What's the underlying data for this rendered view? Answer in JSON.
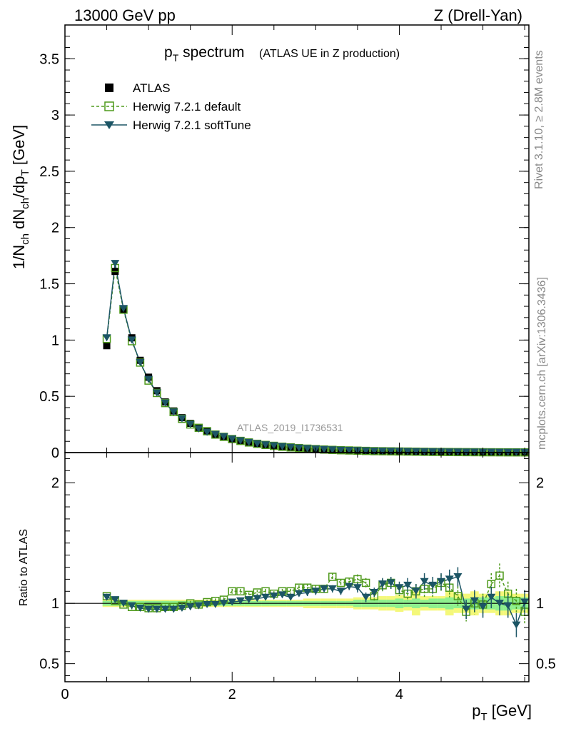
{
  "header": {
    "left": "13000 GeV pp",
    "right": "Z (Drell-Yan)"
  },
  "side_labels": {
    "rivet": "Rivet 3.1.10, ≥ 2.8M events",
    "mcplots": "mcplots.cern.ch [arXiv:1306.3436]"
  },
  "colors": {
    "data": "#000000",
    "default": "#4f9a1c",
    "softtune": "#1c5565",
    "band_inner": "#8ef08e",
    "band_outer": "#f4f87a"
  },
  "chart_data": [
    {
      "type": "line",
      "panel": "main",
      "title_main": "p",
      "title_sub": "T",
      "title_rest": " spectrum",
      "title_note": "(ATLAS UE in Z production)",
      "watermark": "ATLAS_2019_I1736531",
      "ylabel": "1/N_ch dN_ch/dp_T [GeV]",
      "ylim": [
        0,
        3.8
      ],
      "xlim": [
        0,
        5.55
      ],
      "yticks": [
        "0",
        "0.5",
        "1",
        "1.5",
        "2",
        "2.5",
        "3",
        "3.5"
      ],
      "legend_position": "top-left",
      "legend": [
        "ATLAS",
        "Herwig 7.2.1 default",
        "Herwig 7.2.1 softTune"
      ],
      "x": [
        0.5,
        0.6,
        0.7,
        0.8,
        0.9,
        1.0,
        1.1,
        1.2,
        1.3,
        1.4,
        1.5,
        1.6,
        1.7,
        1.8,
        1.9,
        2.0,
        2.1,
        2.2,
        2.3,
        2.4,
        2.5,
        2.6,
        2.7,
        2.8,
        2.9,
        3.0,
        3.1,
        3.2,
        3.3,
        3.4,
        3.5,
        3.6,
        3.7,
        3.8,
        3.9,
        4.0,
        4.1,
        4.2,
        4.3,
        4.4,
        4.5,
        4.6,
        4.7,
        4.8,
        4.9,
        5.0,
        5.1,
        5.2,
        5.3,
        5.4,
        5.5
      ],
      "series": [
        {
          "name": "ATLAS",
          "values": [
            0.95,
            1.61,
            1.27,
            1.02,
            0.82,
            0.67,
            0.55,
            0.45,
            0.37,
            0.31,
            0.26,
            0.22,
            0.19,
            0.16,
            0.14,
            0.12,
            0.104,
            0.09,
            0.078,
            0.068,
            0.06,
            0.052,
            0.046,
            0.04,
            0.035,
            0.031,
            0.027,
            0.024,
            0.021,
            0.019,
            0.017,
            0.015,
            0.013,
            0.012,
            0.011,
            0.01,
            0.009,
            0.008,
            0.007,
            0.006,
            0.0055,
            0.005,
            0.0045,
            0.004,
            0.0036,
            0.0032,
            0.0029,
            0.0026,
            0.0023,
            0.0021,
            0.0019
          ]
        },
        {
          "name": "Herwig 7.2.1 default",
          "values": [
            1.01,
            1.64,
            1.27,
            0.99,
            0.8,
            0.64,
            0.53,
            0.44,
            0.36,
            0.3,
            0.25,
            0.22,
            0.19,
            0.16,
            0.14,
            0.12,
            0.104,
            0.09,
            0.078,
            0.068,
            0.06,
            0.052,
            0.046,
            0.04,
            0.035,
            0.031,
            0.027,
            0.024,
            0.021,
            0.019,
            0.017,
            0.015,
            0.013,
            0.012,
            0.011,
            0.01,
            0.009,
            0.008,
            0.007,
            0.006,
            0.0055,
            0.005,
            0.0045,
            0.004,
            0.0036,
            0.0032,
            0.0029,
            0.0026,
            0.0023,
            0.0021,
            0.0019
          ]
        },
        {
          "name": "Herwig 7.2.1 softTune",
          "values": [
            1.02,
            1.68,
            1.28,
            1.0,
            0.8,
            0.65,
            0.53,
            0.44,
            0.36,
            0.3,
            0.25,
            0.21,
            0.18,
            0.16,
            0.14,
            0.12,
            0.104,
            0.09,
            0.078,
            0.068,
            0.06,
            0.052,
            0.046,
            0.04,
            0.035,
            0.031,
            0.027,
            0.024,
            0.021,
            0.019,
            0.017,
            0.015,
            0.013,
            0.012,
            0.011,
            0.01,
            0.009,
            0.008,
            0.007,
            0.006,
            0.0055,
            0.005,
            0.0045,
            0.004,
            0.0036,
            0.0032,
            0.0029,
            0.0026,
            0.0023,
            0.0021,
            0.0019
          ]
        }
      ]
    },
    {
      "type": "line",
      "panel": "ratio",
      "ylabel": "Ratio to ATLAS",
      "xlabel_main": "p",
      "xlabel_sub": "T",
      "xlabel_rest": " [GeV]",
      "ylim": [
        0.35,
        2.25
      ],
      "xlim": [
        0,
        5.55
      ],
      "yticks": [
        "0.5",
        "1",
        "2"
      ],
      "xticks": [
        "0",
        "2",
        "4"
      ],
      "x": [
        0.5,
        0.6,
        0.7,
        0.8,
        0.9,
        1.0,
        1.1,
        1.2,
        1.3,
        1.4,
        1.5,
        1.6,
        1.7,
        1.8,
        1.9,
        2.0,
        2.1,
        2.2,
        2.3,
        2.4,
        2.5,
        2.6,
        2.7,
        2.8,
        2.9,
        3.0,
        3.1,
        3.2,
        3.3,
        3.4,
        3.5,
        3.6,
        3.7,
        3.8,
        3.9,
        4.0,
        4.1,
        4.2,
        4.3,
        4.4,
        4.5,
        4.6,
        4.7,
        4.8,
        4.9,
        5.0,
        5.1,
        5.2,
        5.3,
        5.4,
        5.5
      ],
      "band_inner": [
        0.02,
        0.02,
        0.02,
        0.02,
        0.02,
        0.02,
        0.02,
        0.02,
        0.02,
        0.02,
        0.02,
        0.02,
        0.02,
        0.02,
        0.02,
        0.02,
        0.02,
        0.02,
        0.02,
        0.02,
        0.02,
        0.02,
        0.02,
        0.02,
        0.02,
        0.02,
        0.02,
        0.02,
        0.02,
        0.02,
        0.03,
        0.03,
        0.03,
        0.03,
        0.03,
        0.04,
        0.03,
        0.04,
        0.03,
        0.04,
        0.04,
        0.05,
        0.04,
        0.04,
        0.05,
        0.05,
        0.05,
        0.06,
        0.06,
        0.05,
        0.05
      ],
      "band_outer": [
        0.03,
        0.03,
        0.03,
        0.03,
        0.03,
        0.03,
        0.03,
        0.03,
        0.03,
        0.03,
        0.03,
        0.03,
        0.03,
        0.03,
        0.03,
        0.03,
        0.03,
        0.03,
        0.03,
        0.03,
        0.03,
        0.03,
        0.03,
        0.03,
        0.04,
        0.04,
        0.04,
        0.04,
        0.04,
        0.04,
        0.05,
        0.05,
        0.05,
        0.06,
        0.06,
        0.07,
        0.06,
        0.1,
        0.06,
        0.06,
        0.06,
        0.1,
        0.08,
        0.08,
        0.1,
        0.08,
        0.08,
        0.1,
        0.1,
        0.08,
        0.08
      ],
      "series": [
        {
          "name": "Herwig 7.2.1 default",
          "values": [
            1.06,
            1.02,
            0.99,
            0.97,
            0.97,
            0.96,
            0.96,
            0.97,
            0.97,
            0.98,
            1.0,
            0.99,
            1.01,
            1.02,
            1.03,
            1.1,
            1.1,
            1.07,
            1.09,
            1.1,
            1.08,
            1.1,
            1.1,
            1.13,
            1.13,
            1.12,
            1.12,
            1.22,
            1.17,
            1.18,
            1.2,
            1.17,
            1.06,
            1.15,
            1.17,
            1.11,
            1.08,
            1.1,
            1.12,
            1.12,
            1.17,
            1.13,
            1.06,
            0.93,
            1.0,
            0.99,
            1.16,
            1.23,
            1.08,
            1.02,
            0.93
          ],
          "errors": [
            0.02,
            0.02,
            0.02,
            0.02,
            0.02,
            0.02,
            0.02,
            0.02,
            0.02,
            0.02,
            0.02,
            0.02,
            0.02,
            0.02,
            0.02,
            0.02,
            0.02,
            0.02,
            0.02,
            0.02,
            0.02,
            0.02,
            0.02,
            0.02,
            0.03,
            0.03,
            0.03,
            0.03,
            0.03,
            0.03,
            0.04,
            0.04,
            0.04,
            0.05,
            0.05,
            0.05,
            0.06,
            0.06,
            0.07,
            0.07,
            0.07,
            0.08,
            0.08,
            0.08,
            0.09,
            0.09,
            0.09,
            0.1,
            0.1,
            0.1,
            0.1
          ]
        },
        {
          "name": "Herwig 7.2.1 softTune",
          "values": [
            1.05,
            1.03,
            1.0,
            0.98,
            0.96,
            0.95,
            0.95,
            0.95,
            0.95,
            0.96,
            0.97,
            0.98,
            0.99,
            0.99,
            1.0,
            1.01,
            1.02,
            1.03,
            1.04,
            1.05,
            1.06,
            1.07,
            1.05,
            1.08,
            1.09,
            1.1,
            1.12,
            1.12,
            1.1,
            1.14,
            1.13,
            1.05,
            1.09,
            1.16,
            1.17,
            1.13,
            1.15,
            1.1,
            1.18,
            1.15,
            1.18,
            1.2,
            1.22,
            0.95,
            1.02,
            0.97,
            1.05,
            1.0,
            0.98,
            0.82,
            1.01
          ],
          "errors": [
            0.02,
            0.02,
            0.02,
            0.02,
            0.02,
            0.02,
            0.02,
            0.02,
            0.02,
            0.02,
            0.02,
            0.02,
            0.02,
            0.02,
            0.02,
            0.02,
            0.02,
            0.02,
            0.02,
            0.02,
            0.02,
            0.02,
            0.02,
            0.02,
            0.03,
            0.03,
            0.03,
            0.03,
            0.03,
            0.03,
            0.04,
            0.04,
            0.04,
            0.05,
            0.05,
            0.05,
            0.06,
            0.06,
            0.07,
            0.07,
            0.07,
            0.08,
            0.08,
            0.08,
            0.09,
            0.09,
            0.09,
            0.1,
            0.1,
            0.1,
            0.1
          ]
        }
      ]
    }
  ]
}
